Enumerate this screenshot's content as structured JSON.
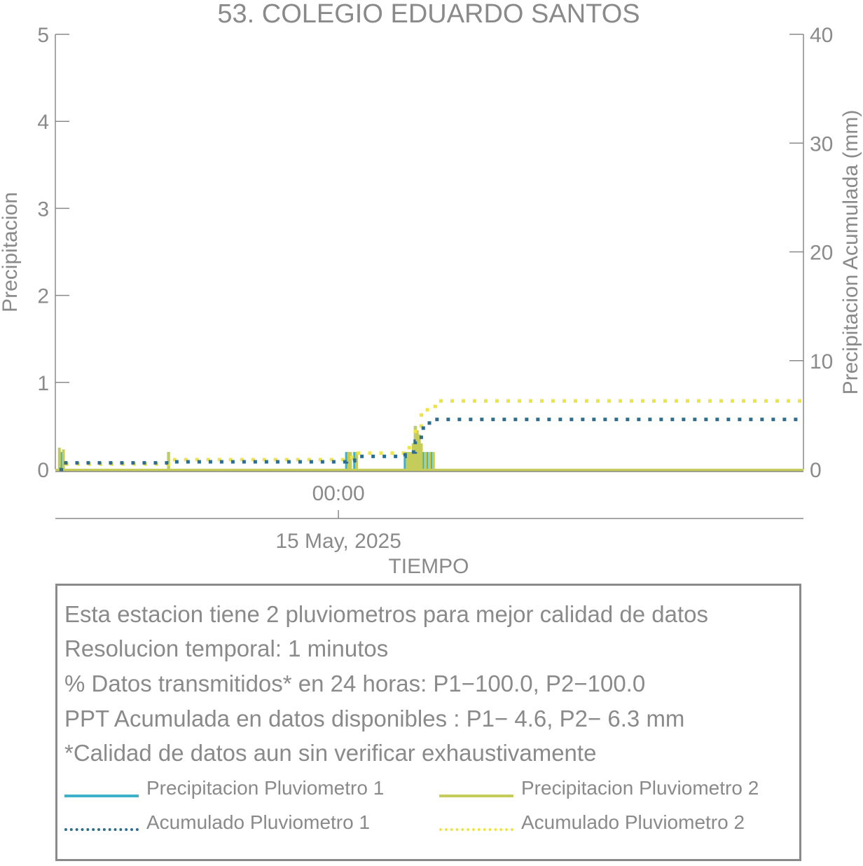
{
  "chart_data": {
    "type": "line",
    "title": "53. COLEGIO EDUARDO SANTOS",
    "xlabel": "TIEMPO",
    "ylabel_left": "Precipitacion",
    "ylabel_right": "Precipitacion Acumulada (mm)",
    "ylim_left": [
      0,
      5
    ],
    "ylim_right": [
      0,
      40
    ],
    "yticks_left": [
      "0",
      "1",
      "2",
      "3",
      "4",
      "5"
    ],
    "yticks_right": [
      "0",
      "10",
      "20",
      "30",
      "40"
    ],
    "x_tick_time": "00:00",
    "x_tick_date": "15 May, 2025",
    "x_range_hours": [
      -14,
      23
    ],
    "grid": false,
    "colors": {
      "p1": "#3fb0c9",
      "p2": "#c5cc5a",
      "acc1": "#2e6d8e",
      "acc2": "#f0e442",
      "axis": "#8a8a8a"
    },
    "series": [
      {
        "name": "Precipitacion Pluviometro 1",
        "axis": "left",
        "style": "bar",
        "x": [
          -13.7,
          -8.4,
          0.4,
          0.5,
          0.8,
          3.3,
          3.5,
          3.7,
          3.8,
          4.0,
          4.2,
          4.4,
          4.6
        ],
        "values": [
          0.2,
          0.2,
          0.2,
          0.2,
          0.2,
          0.2,
          0.2,
          0.3,
          0.5,
          0.4,
          0.2,
          0.2,
          0.2
        ]
      },
      {
        "name": "Precipitacion Pluviometro 2",
        "axis": "left",
        "style": "bar",
        "x": [
          -13.8,
          -13.6,
          -8.4,
          0.5,
          0.6,
          0.9,
          3.4,
          3.5,
          3.6,
          3.7,
          3.8,
          3.9,
          4.0,
          4.1,
          4.3,
          4.5,
          4.7
        ],
        "values": [
          0.25,
          0.23,
          0.2,
          0.2,
          0.2,
          0.2,
          0.2,
          0.2,
          0.2,
          0.3,
          0.5,
          0.45,
          0.4,
          0.3,
          0.2,
          0.2,
          0.2
        ]
      },
      {
        "name": "Acumulado Pluviometro 1",
        "axis": "right",
        "style": "dotted",
        "x": [
          -13.8,
          -13.7,
          -8.4,
          0.4,
          0.8,
          3.3,
          3.8,
          4.1,
          4.5,
          23
        ],
        "values": [
          0,
          0.6,
          0.7,
          0.8,
          1.2,
          1.6,
          2.6,
          3.8,
          4.6,
          4.6
        ]
      },
      {
        "name": "Acumulado Pluviometro 2",
        "axis": "right",
        "style": "dotted",
        "x": [
          -13.8,
          -13.6,
          -8.4,
          0.5,
          0.9,
          3.4,
          3.8,
          4.1,
          4.4,
          4.8,
          23
        ],
        "values": [
          0,
          0.5,
          0.9,
          1.1,
          1.5,
          2.0,
          3.5,
          5.0,
          5.8,
          6.3,
          6.3
        ]
      }
    ]
  },
  "info": {
    "lines": [
      "Esta estacion tiene 2 pluviometros para mejor calidad de datos",
      "Resolucion temporal: 1 minutos",
      "% Datos transmitidos* en 24 horas: P1−100.0, P2−100.0",
      "PPT Acumulada en datos disponibles : P1−  4.6, P2−  6.3 mm",
      "*Calidad de datos aun sin verificar exhaustivamente"
    ],
    "legend": [
      {
        "label": "Precipitacion Pluviometro 1",
        "color": "#3fb0c9",
        "style": "solid"
      },
      {
        "label": "Precipitacion Pluviometro 2",
        "color": "#c5cc5a",
        "style": "solid"
      },
      {
        "label": "Acumulado Pluviometro 1",
        "color": "#2e6d8e",
        "style": "dotted"
      },
      {
        "label": "Acumulado Pluviometro 2",
        "color": "#f0e442",
        "style": "dotted"
      }
    ]
  }
}
